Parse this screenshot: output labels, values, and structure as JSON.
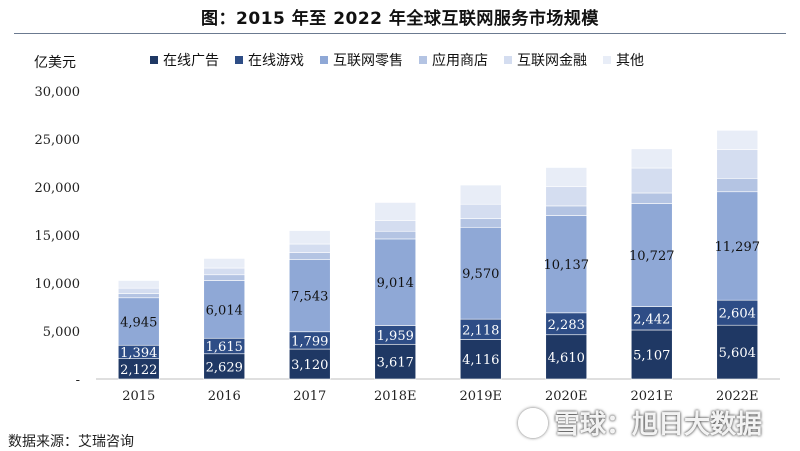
{
  "title": "图：2015 年至 2022 年全球互联网服务市场规模",
  "source": "数据来源：艾瑞咨询",
  "watermark": "雪球：旭日大数据",
  "colors": {
    "在线广告": "#1f3864",
    "在线游戏": "#2e4d86",
    "互联网零售": "#8fa8d6",
    "应用商店": "#b4c4e3",
    "互联网金融": "#d4ddf0",
    "其他": "#e8edf7"
  },
  "chart_data": {
    "type": "bar",
    "stacked": true,
    "title": "图：2015 年至 2022 年全球互联网服务市场规模",
    "ylabel": "亿美元",
    "xlabel": "",
    "ylim": [
      0,
      30000
    ],
    "yticks": [
      "-",
      "5,000",
      "10,000",
      "15,000",
      "20,000",
      "25,000",
      "30,000"
    ],
    "legend_position": "top",
    "categories": [
      "2015",
      "2016",
      "2017",
      "2018E",
      "2019E",
      "2020E",
      "2021E",
      "2022E"
    ],
    "series": [
      {
        "name": "在线广告",
        "values": [
          2122,
          2629,
          3120,
          3617,
          4116,
          4610,
          5107,
          5604
        ],
        "labels": [
          "2,122",
          "2,629",
          "3,120",
          "3,617",
          "4,116",
          "4,610",
          "5,107",
          "5,604"
        ]
      },
      {
        "name": "在线游戏",
        "values": [
          1394,
          1615,
          1799,
          1959,
          2118,
          2283,
          2442,
          2604
        ],
        "labels": [
          "1,394",
          "1,615",
          "1,799",
          "1,959",
          "2,118",
          "2,283",
          "2,442",
          "2,604"
        ]
      },
      {
        "name": "互联网零售",
        "values": [
          4945,
          6014,
          7543,
          9014,
          9570,
          10137,
          10727,
          11297
        ],
        "labels": [
          "4,945",
          "6,014",
          "7,543",
          "9,014",
          "9,570",
          "10,137",
          "10,727",
          "11,297"
        ]
      },
      {
        "name": "应用商店",
        "values": [
          450,
          600,
          700,
          800,
          900,
          1000,
          1100,
          1400
        ]
      },
      {
        "name": "互联网金融",
        "values": [
          550,
          700,
          900,
          1100,
          1500,
          2000,
          2600,
          3000
        ]
      },
      {
        "name": "其他",
        "values": [
          800,
          1000,
          1400,
          1900,
          2000,
          2000,
          2000,
          2000
        ]
      }
    ]
  }
}
